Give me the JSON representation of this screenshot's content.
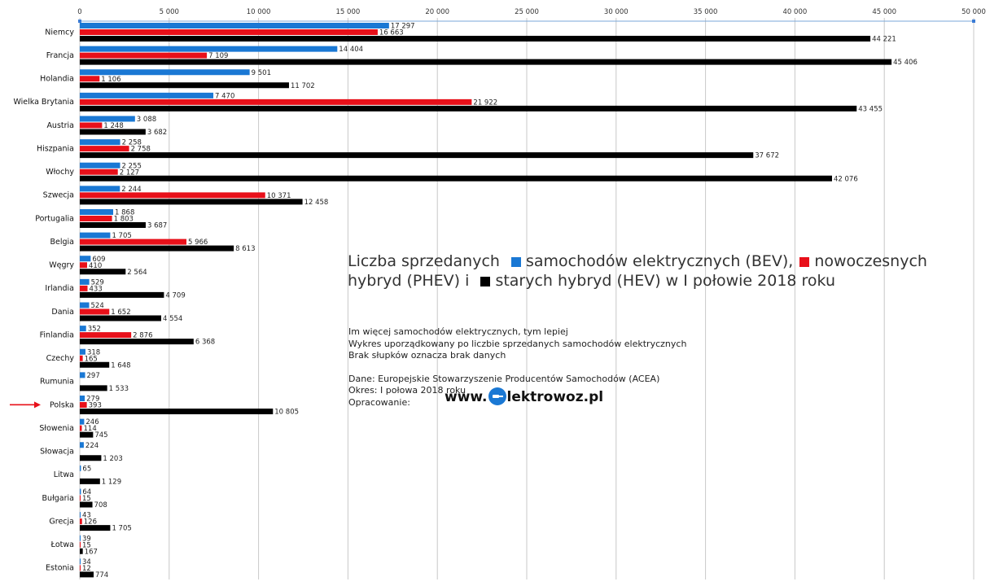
{
  "chart_data": {
    "type": "bar",
    "orientation": "horizontal",
    "title_parts": [
      {
        "text": "Liczba sprzedanych ",
        "marker": null
      },
      {
        "text": "samochodów elektrycznych (BEV),",
        "marker": "#1a78d4"
      },
      {
        "text": "nowoczesnych hybryd (PHEV) i ",
        "marker": "#e8101a"
      },
      {
        "text": "starych hybryd (HEV) w I połowie 2018 roku",
        "marker": "#000000"
      }
    ],
    "notes": [
      "Im więcej samochodów elektrycznych, tym lepiej",
      "Wykres uporządkowany po liczbie sprzedanych samochodów elektrycznych",
      "Brak słupków oznacza brak danych"
    ],
    "source": [
      "Dane: Europejskie Stowarzyszenie Producentów Samochodów (ACEA)",
      "Okres: I połowa 2018 roku",
      "Opracowanie:"
    ],
    "logo": {
      "prefix": "www.",
      "suffix": "lektrowoz.pl"
    },
    "xlim": [
      0,
      50000
    ],
    "xticks": [
      0,
      5000,
      10000,
      15000,
      20000,
      25000,
      30000,
      35000,
      40000,
      45000,
      50000
    ],
    "xtick_labels": [
      "0",
      "5 000",
      "10 000",
      "15 000",
      "20 000",
      "25 000",
      "30 000",
      "35 000",
      "40 000",
      "45 000",
      "50 000"
    ],
    "grid": true,
    "highlight_category": "Polska",
    "categories": [
      "Niemcy",
      "Francja",
      "Holandia",
      "Wielka Brytania",
      "Austria",
      "Hiszpania",
      "Włochy",
      "Szwecja",
      "Portugalia",
      "Belgia",
      "Węgry",
      "Irlandia",
      "Dania",
      "Finlandia",
      "Czechy",
      "Rumunia",
      "Polska",
      "Słowenia",
      "Słowacja",
      "Litwa",
      "Bułgaria",
      "Grecja",
      "Łotwa",
      "Estonia"
    ],
    "series": [
      {
        "color": "#1a78d4",
        "values": [
          17297,
          14404,
          9501,
          7470,
          3088,
          2258,
          2255,
          2244,
          1868,
          1705,
          609,
          529,
          524,
          352,
          318,
          297,
          279,
          246,
          224,
          65,
          64,
          43,
          39,
          34
        ],
        "labels": [
          "17 297",
          "14 404",
          "9 501",
          "7 470",
          "3 088",
          "2 258",
          "2 255",
          "2 244",
          "1 868",
          "1 705",
          "609",
          "529",
          "524",
          "352",
          "318",
          "297",
          "279",
          "246",
          "224",
          "65",
          "64",
          "43",
          "39",
          "34"
        ]
      },
      {
        "color": "#e8101a",
        "values": [
          16663,
          7109,
          1106,
          21922,
          1248,
          2758,
          2127,
          10371,
          1803,
          5966,
          410,
          433,
          1652,
          2876,
          165,
          null,
          393,
          114,
          null,
          null,
          15,
          126,
          15,
          12
        ],
        "labels": [
          "16 663",
          "7 109",
          "1 106",
          "21 922",
          "1 248",
          "2 758",
          "2 127",
          "10 371",
          "1 803",
          "5 966",
          "410",
          "433",
          "1 652",
          "2 876",
          "165",
          null,
          "393",
          "114",
          null,
          null,
          "15",
          "126",
          "15",
          "12"
        ]
      },
      {
        "color": "#000000",
        "values": [
          44221,
          45406,
          11702,
          43455,
          3682,
          37672,
          42076,
          12458,
          3687,
          8613,
          2564,
          4709,
          4554,
          6368,
          1648,
          1533,
          10805,
          745,
          1203,
          1129,
          708,
          1705,
          167,
          774
        ],
        "labels": [
          "44 221",
          "45 406",
          "11 702",
          "43 455",
          "3 682",
          "37 672",
          "42 076",
          "12 458",
          "3 687",
          "8 613",
          "2 564",
          "4 709",
          "4 554",
          "6 368",
          "1 648",
          "1 533",
          "10 805",
          "745",
          "1 203",
          "1 129",
          "708",
          "1 705",
          "167",
          "774"
        ]
      }
    ]
  }
}
